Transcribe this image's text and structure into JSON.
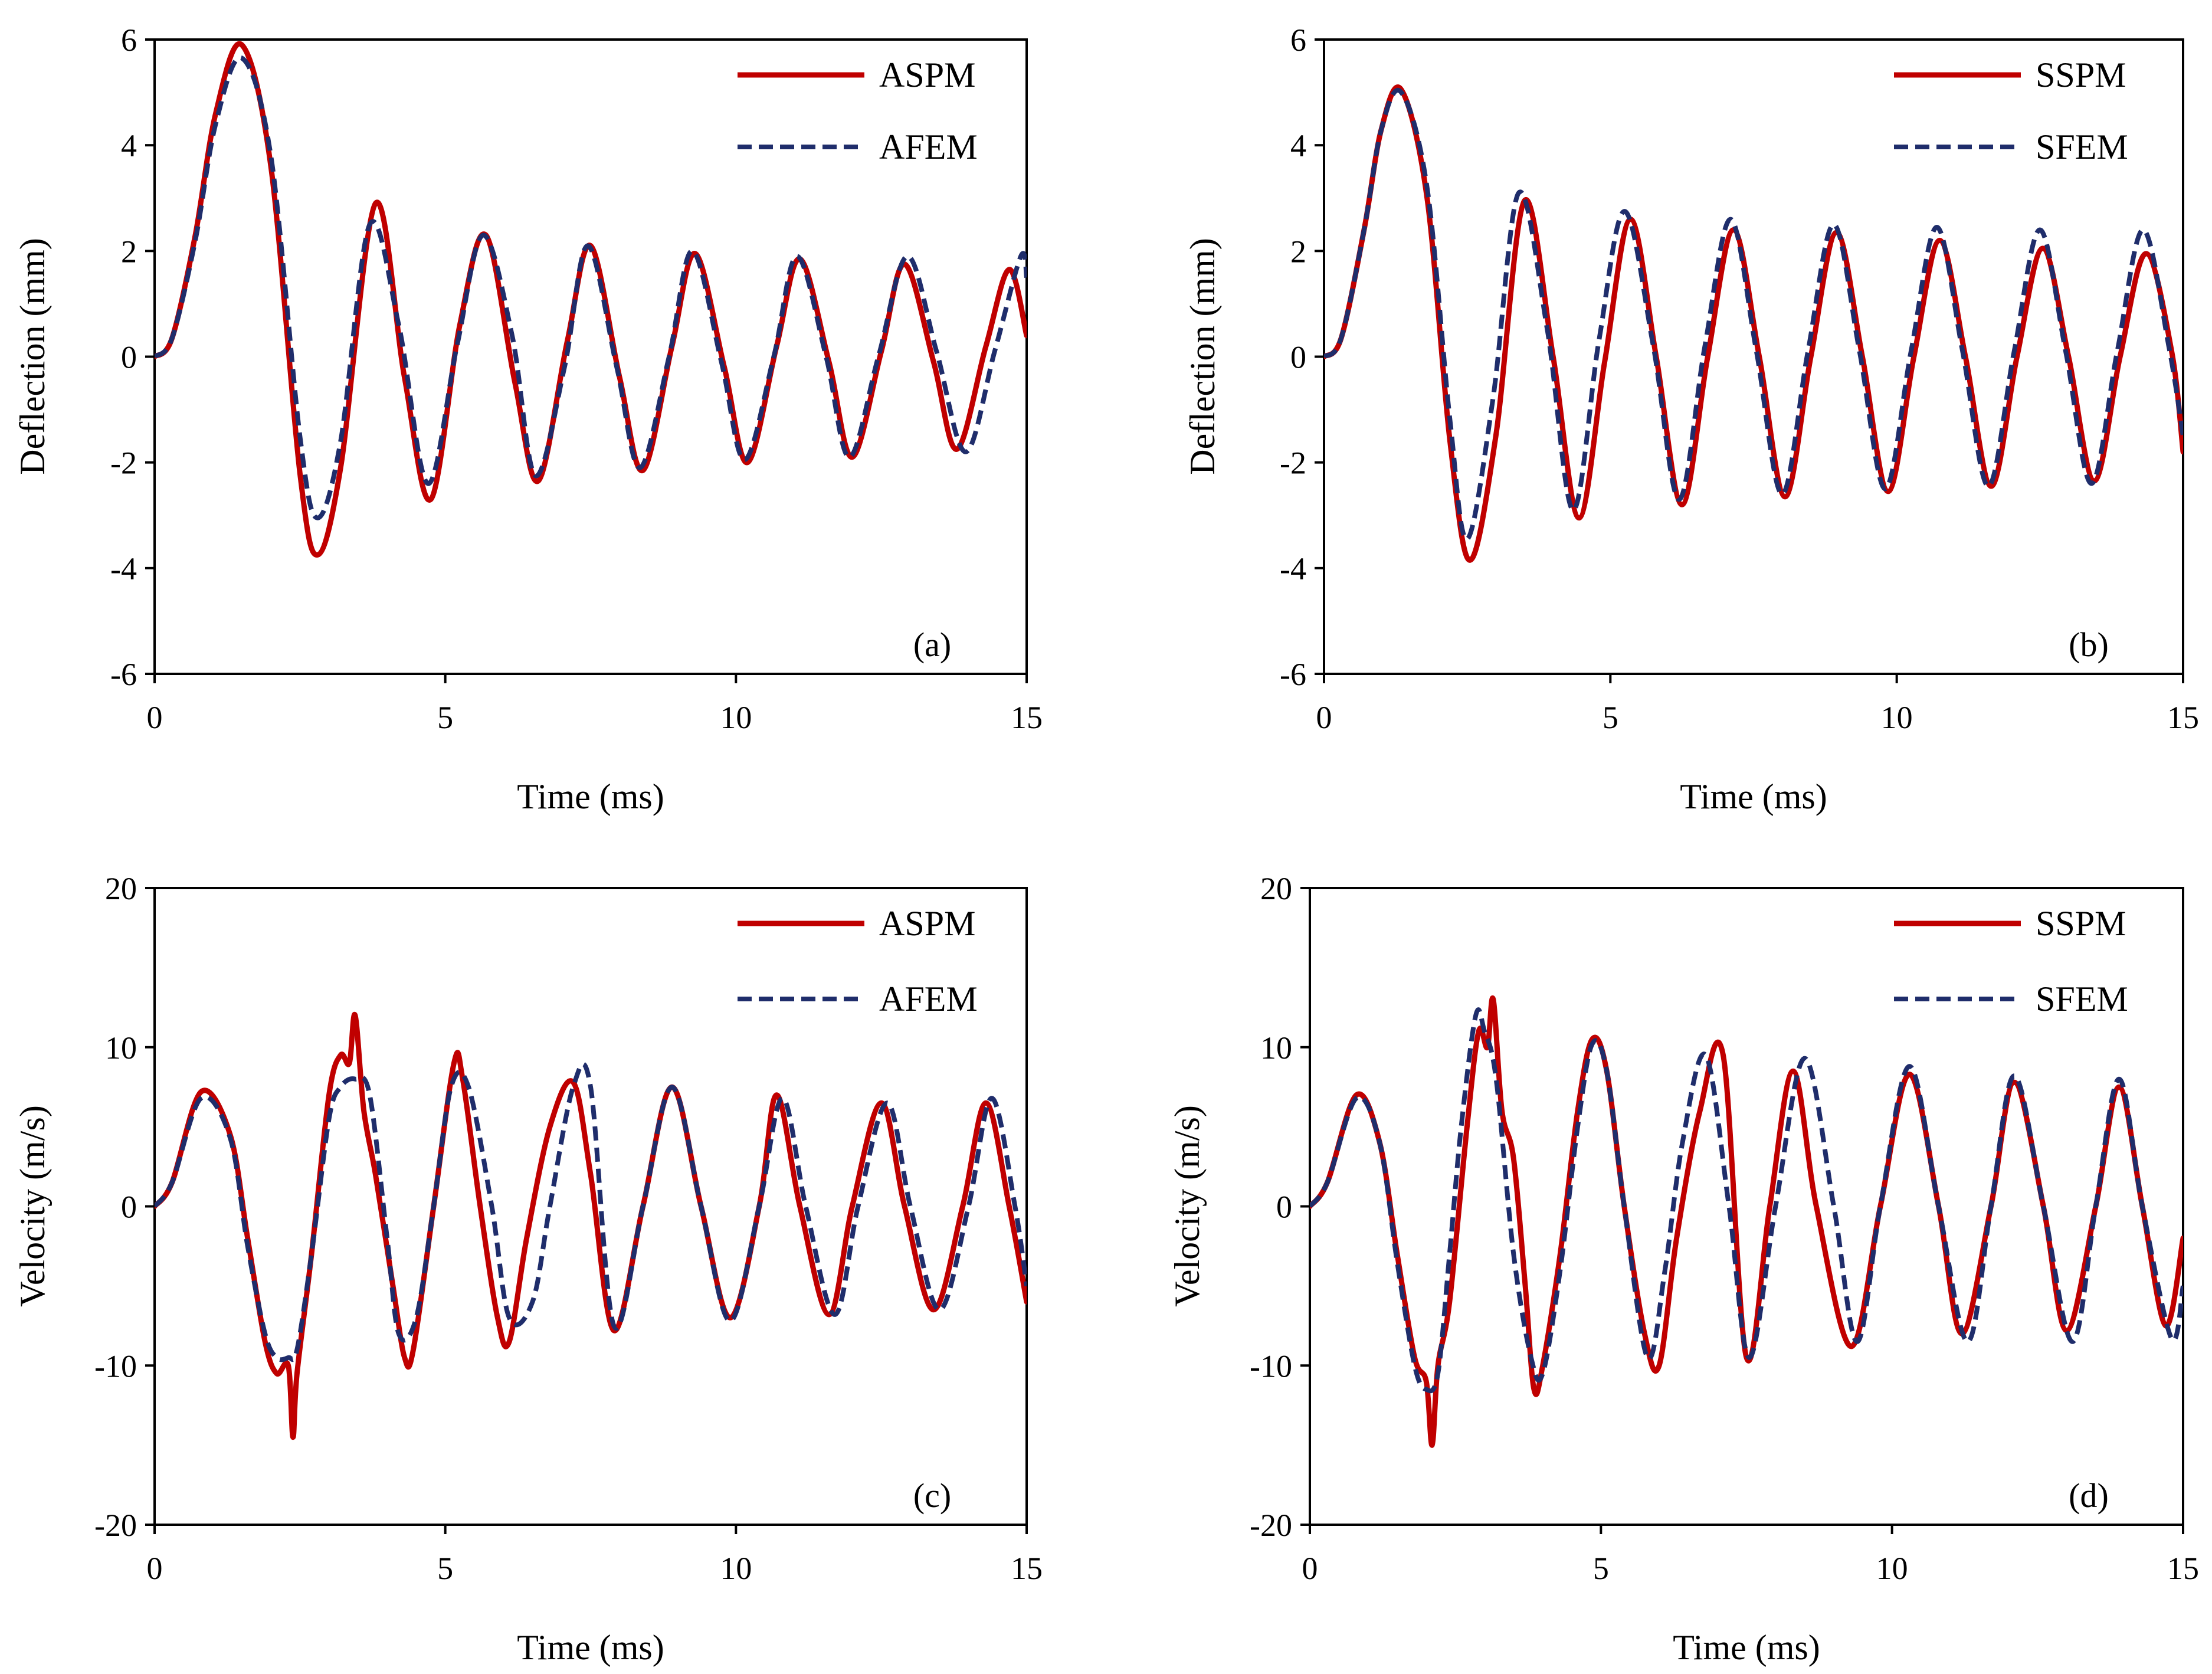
{
  "colors": {
    "spm": "#c00000",
    "fem": "#1f2d6b",
    "axis": "#000000",
    "background": "#ffffff"
  },
  "chart_data": [
    {
      "type": "line",
      "id": "a",
      "panel_label": "(a)",
      "xlabel": "Time (ms)",
      "ylabel": "Deflection (mm)",
      "xlim": [
        0,
        15
      ],
      "ylim": [
        -6,
        6
      ],
      "xticks": [
        0,
        5,
        10,
        15
      ],
      "yticks": [
        -6,
        -4,
        -2,
        0,
        2,
        4,
        6
      ],
      "xtick_labels": [
        "0",
        "5",
        "10",
        "15"
      ],
      "ytick_labels": [
        "-6",
        "-4",
        "-2",
        "0",
        "2",
        "4",
        "6"
      ],
      "legend_position": "top-right",
      "series": [
        {
          "name": "ASPM",
          "style": "solid",
          "color": "#c00000",
          "x": [
            0,
            0.3,
            0.7,
            1.05,
            1.5,
            2.0,
            2.5,
            2.8,
            3.2,
            3.8,
            4.3,
            4.75,
            5.25,
            5.7,
            6.2,
            6.6,
            7.1,
            7.5,
            8.0,
            8.4,
            8.9,
            9.3,
            9.8,
            10.2,
            10.7,
            11.1,
            11.6,
            12.0,
            12.5,
            12.9,
            13.4,
            13.8,
            14.3,
            14.7,
            15
          ],
          "y": [
            0,
            0.35,
            2.3,
            4.6,
            5.9,
            3.6,
            -2.2,
            -3.75,
            -2.1,
            2.9,
            -0.4,
            -2.7,
            0.6,
            2.3,
            -0.5,
            -2.35,
            0.3,
            2.1,
            -0.4,
            -2.15,
            0.2,
            1.95,
            -0.2,
            -2.0,
            0.2,
            1.85,
            -0.1,
            -1.9,
            0.1,
            1.75,
            -0.1,
            -1.75,
            0.2,
            1.65,
            0.4
          ]
        },
        {
          "name": "AFEM",
          "style": "dashed",
          "color": "#1f2d6b",
          "x": [
            0,
            0.3,
            0.7,
            1.05,
            1.5,
            2.0,
            2.5,
            2.8,
            3.2,
            3.7,
            4.2,
            4.7,
            5.2,
            5.65,
            6.15,
            6.55,
            7.05,
            7.45,
            7.95,
            8.35,
            8.85,
            9.25,
            9.75,
            10.15,
            10.65,
            11.05,
            11.55,
            11.95,
            12.45,
            12.95,
            13.45,
            13.95,
            14.45,
            14.9,
            15
          ],
          "y": [
            0,
            0.35,
            2.2,
            4.4,
            5.65,
            3.8,
            -1.5,
            -3.05,
            -1.6,
            2.5,
            0.6,
            -2.4,
            0.2,
            2.3,
            0.4,
            -2.25,
            -0.2,
            2.1,
            -0.2,
            -2.1,
            0.0,
            2.0,
            -0.1,
            -1.95,
            0.0,
            1.9,
            0.0,
            -1.9,
            0.0,
            1.9,
            0.1,
            -1.8,
            0.1,
            1.9,
            1.5
          ]
        }
      ]
    },
    {
      "type": "line",
      "id": "b",
      "panel_label": "(b)",
      "xlabel": "Time (ms)",
      "ylabel": "Deflection (mm)",
      "xlim": [
        0,
        15
      ],
      "ylim": [
        -6,
        6
      ],
      "xticks": [
        0,
        5,
        10,
        15
      ],
      "yticks": [
        -6,
        -4,
        -2,
        0,
        2,
        4,
        6
      ],
      "xtick_labels": [
        "0",
        "5",
        "10",
        "15"
      ],
      "ytick_labels": [
        "-6",
        "-4",
        "-2",
        "0",
        "2",
        "4",
        "6"
      ],
      "legend_position": "top-right",
      "series": [
        {
          "name": "SSPM",
          "style": "solid",
          "color": "#c00000",
          "x": [
            0,
            0.3,
            0.7,
            1.0,
            1.35,
            1.8,
            2.2,
            2.55,
            3.0,
            3.5,
            4.0,
            4.45,
            4.9,
            5.35,
            5.8,
            6.25,
            6.7,
            7.15,
            7.6,
            8.05,
            8.5,
            8.95,
            9.4,
            9.85,
            10.3,
            10.75,
            11.2,
            11.65,
            12.1,
            12.55,
            13.0,
            13.45,
            13.9,
            14.35,
            14.8,
            15
          ],
          "y": [
            0,
            0.35,
            2.4,
            4.3,
            5.05,
            3.0,
            -1.6,
            -3.85,
            -1.5,
            2.95,
            0.0,
            -3.05,
            -0.1,
            2.6,
            0.0,
            -2.8,
            0.0,
            2.4,
            0.0,
            -2.65,
            0.0,
            2.35,
            0.0,
            -2.55,
            0.0,
            2.2,
            0.0,
            -2.45,
            0.0,
            2.05,
            0.0,
            -2.35,
            0.0,
            1.95,
            0.1,
            -1.8
          ]
        },
        {
          "name": "SFEM",
          "style": "dashed",
          "color": "#1f2d6b",
          "x": [
            0,
            0.3,
            0.7,
            1.0,
            1.35,
            1.8,
            2.2,
            2.5,
            2.95,
            3.4,
            3.9,
            4.35,
            4.8,
            5.25,
            5.75,
            6.2,
            6.65,
            7.1,
            7.55,
            8.0,
            8.45,
            8.9,
            9.35,
            9.8,
            10.25,
            10.7,
            11.15,
            11.6,
            12.05,
            12.5,
            12.95,
            13.4,
            13.85,
            14.3,
            14.75,
            15
          ],
          "y": [
            0,
            0.35,
            2.4,
            4.3,
            5.0,
            3.2,
            -1.2,
            -3.45,
            -0.8,
            3.1,
            0.5,
            -2.9,
            0.3,
            2.75,
            0.2,
            -2.7,
            0.2,
            2.6,
            0.1,
            -2.6,
            0.1,
            2.5,
            0.1,
            -2.5,
            0.1,
            2.45,
            0.1,
            -2.45,
            0.1,
            2.4,
            0.1,
            -2.4,
            0.1,
            2.4,
            0.2,
            -1.5
          ]
        }
      ]
    },
    {
      "type": "line",
      "id": "c",
      "panel_label": "(c)",
      "xlabel": "Time (ms)",
      "ylabel": "Velocity (m/s)",
      "xlim": [
        0,
        15
      ],
      "ylim": [
        -20,
        20
      ],
      "xticks": [
        0,
        5,
        10,
        15
      ],
      "yticks": [
        -20,
        -10,
        0,
        10,
        20
      ],
      "xtick_labels": [
        "0",
        "5",
        "10",
        "15"
      ],
      "ytick_labels": [
        "-20",
        "-10",
        "0",
        "10",
        "20"
      ],
      "legend_position": "top-right",
      "series": [
        {
          "name": "ASPM",
          "style": "solid",
          "color": "#c00000",
          "x": [
            0,
            0.3,
            0.8,
            1.3,
            1.6,
            1.9,
            2.1,
            2.3,
            2.38,
            2.45,
            2.7,
            3.0,
            3.2,
            3.35,
            3.45,
            3.6,
            3.8,
            4.1,
            4.3,
            4.45,
            4.8,
            5.15,
            5.3,
            5.6,
            5.9,
            6.1,
            6.4,
            6.8,
            7.2,
            7.5,
            7.9,
            8.4,
            8.9,
            9.4,
            9.9,
            10.4,
            10.7,
            11.1,
            11.6,
            12.0,
            12.5,
            12.9,
            13.4,
            13.9,
            14.3,
            14.7,
            15
          ],
          "y": [
            0,
            1.5,
            7.2,
            4.5,
            -2.0,
            -8.5,
            -10.5,
            -10.0,
            -14.5,
            -10.5,
            -3.0,
            7.0,
            9.5,
            9.0,
            12.0,
            6.0,
            2.0,
            -5.0,
            -9.5,
            -9.0,
            0.0,
            9.0,
            8.0,
            0.0,
            -7.0,
            -8.5,
            -2.0,
            5.0,
            7.8,
            2.0,
            -7.8,
            0.0,
            7.5,
            0.0,
            -7.0,
            0.0,
            7.0,
            0.0,
            -6.8,
            0.0,
            6.5,
            0.0,
            -6.5,
            0.0,
            6.5,
            0.0,
            -6.0
          ]
        },
        {
          "name": "AFEM",
          "style": "dashed",
          "color": "#1f2d6b",
          "x": [
            0,
            0.3,
            0.8,
            1.3,
            1.6,
            1.9,
            2.1,
            2.3,
            2.45,
            2.7,
            3.0,
            3.2,
            3.45,
            3.7,
            4.0,
            4.2,
            4.5,
            4.8,
            5.1,
            5.4,
            5.8,
            6.1,
            6.5,
            6.8,
            7.2,
            7.5,
            7.9,
            8.4,
            8.9,
            9.4,
            9.9,
            10.4,
            10.8,
            11.2,
            11.7,
            12.1,
            12.6,
            13.0,
            13.5,
            14.0,
            14.4,
            14.8,
            15
          ],
          "y": [
            0,
            1.5,
            6.8,
            4.3,
            -2.5,
            -8.0,
            -9.5,
            -9.5,
            -9.0,
            -3.0,
            5.5,
            7.5,
            8.0,
            7.0,
            -2.0,
            -8.0,
            -7.0,
            0.0,
            7.5,
            7.5,
            0.0,
            -7.0,
            -6.0,
            0.0,
            7.5,
            7.5,
            -7.5,
            0.0,
            7.5,
            0.0,
            -7.2,
            0.0,
            6.8,
            0.0,
            -6.8,
            0.0,
            6.5,
            0.0,
            -6.5,
            0.0,
            6.8,
            0.0,
            -5.0
          ]
        }
      ]
    },
    {
      "type": "line",
      "id": "d",
      "panel_label": "(d)",
      "xlabel": "Time (ms)",
      "ylabel": "Velocity (m/s)",
      "xlim": [
        0,
        15
      ],
      "ylim": [
        -20,
        20
      ],
      "xticks": [
        0,
        5,
        10,
        15
      ],
      "yticks": [
        -20,
        -10,
        0,
        10,
        20
      ],
      "xtick_labels": [
        "0",
        "5",
        "10",
        "15"
      ],
      "ytick_labels": [
        "-20",
        "-10",
        "0",
        "10",
        "20"
      ],
      "legend_position": "top-right",
      "series": [
        {
          "name": "SSPM",
          "style": "solid",
          "color": "#c00000",
          "x": [
            0,
            0.3,
            0.8,
            1.2,
            1.5,
            1.8,
            2.0,
            2.1,
            2.2,
            2.4,
            2.7,
            2.9,
            3.05,
            3.15,
            3.3,
            3.5,
            3.7,
            3.85,
            4.0,
            4.3,
            4.6,
            4.85,
            5.1,
            5.4,
            5.75,
            6.0,
            6.3,
            6.7,
            7.1,
            7.5,
            7.9,
            8.3,
            8.7,
            9.3,
            9.8,
            10.3,
            10.8,
            11.2,
            11.7,
            12.1,
            12.6,
            13.0,
            13.5,
            13.9,
            14.3,
            14.7,
            15
          ],
          "y": [
            0,
            1.5,
            7.0,
            4.0,
            -3.0,
            -9.5,
            -11.0,
            -15.0,
            -10.0,
            -6.0,
            5.0,
            11.0,
            10.0,
            13.0,
            6.0,
            3.0,
            -5.0,
            -11.5,
            -10.0,
            -3.0,
            6.0,
            10.5,
            8.5,
            0.0,
            -8.0,
            -10.0,
            -2.0,
            6.0,
            9.5,
            -9.5,
            0.0,
            8.5,
            0.0,
            -8.8,
            0.0,
            8.3,
            0.0,
            -8.0,
            0.0,
            7.8,
            0.0,
            -7.8,
            0.0,
            7.5,
            0.0,
            -7.5,
            -2.0
          ]
        },
        {
          "name": "SFEM",
          "style": "dashed",
          "color": "#1f2d6b",
          "x": [
            0,
            0.3,
            0.8,
            1.2,
            1.5,
            1.8,
            2.0,
            2.2,
            2.4,
            2.6,
            2.85,
            3.0,
            3.2,
            3.5,
            3.8,
            4.0,
            4.3,
            4.6,
            4.85,
            5.1,
            5.4,
            5.8,
            6.1,
            6.4,
            6.8,
            7.2,
            7.55,
            8.0,
            8.5,
            9.0,
            9.4,
            9.8,
            10.3,
            10.8,
            11.3,
            11.7,
            12.1,
            12.6,
            13.1,
            13.5,
            13.9,
            14.3,
            14.8,
            15
          ],
          "y": [
            0,
            1.5,
            6.8,
            4.0,
            -3.5,
            -10.0,
            -11.5,
            -10.5,
            -3.0,
            5.0,
            12.0,
            11.0,
            8.0,
            -3.0,
            -9.5,
            -10.5,
            -4.0,
            5.0,
            10.2,
            8.5,
            0.0,
            -9.5,
            -4.0,
            4.0,
            9.5,
            0.0,
            -9.5,
            0.0,
            9.3,
            0.0,
            -8.5,
            0.0,
            8.8,
            0.0,
            -8.5,
            0.0,
            8.2,
            0.0,
            -8.5,
            0.0,
            8.0,
            0.0,
            -8.3,
            -5.0
          ]
        }
      ]
    }
  ]
}
